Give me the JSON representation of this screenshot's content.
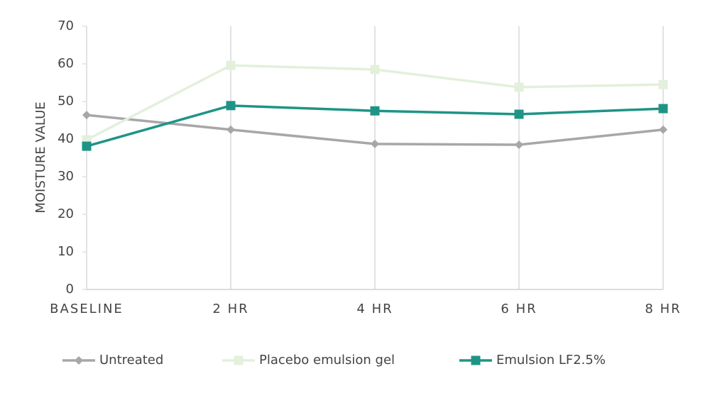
{
  "chart_data": {
    "type": "line",
    "y_label": "MOISTURE VALUE",
    "categories": [
      "BASELINE",
      "2 HR",
      "4 HR",
      "6 HR",
      "8 HR"
    ],
    "series": [
      {
        "name": "Untreated",
        "color": "#a8a6a8",
        "marker": "diamond",
        "values": [
          46.4,
          42.5,
          38.7,
          38.5,
          42.5
        ]
      },
      {
        "name": "Placebo emulsion gel",
        "color": "#e3f0dc",
        "marker": "square",
        "values": [
          39.8,
          59.6,
          58.5,
          53.8,
          54.5
        ]
      },
      {
        "name": "Emulsion LF2.5%",
        "color": "#1e9486",
        "marker": "square",
        "values": [
          38.1,
          48.9,
          47.5,
          46.6,
          48.1
        ]
      }
    ],
    "ylim": [
      0,
      70
    ],
    "yticks": [
      0,
      10,
      20,
      30,
      40,
      50,
      60,
      70
    ],
    "grid": true,
    "legend": "bottom"
  }
}
